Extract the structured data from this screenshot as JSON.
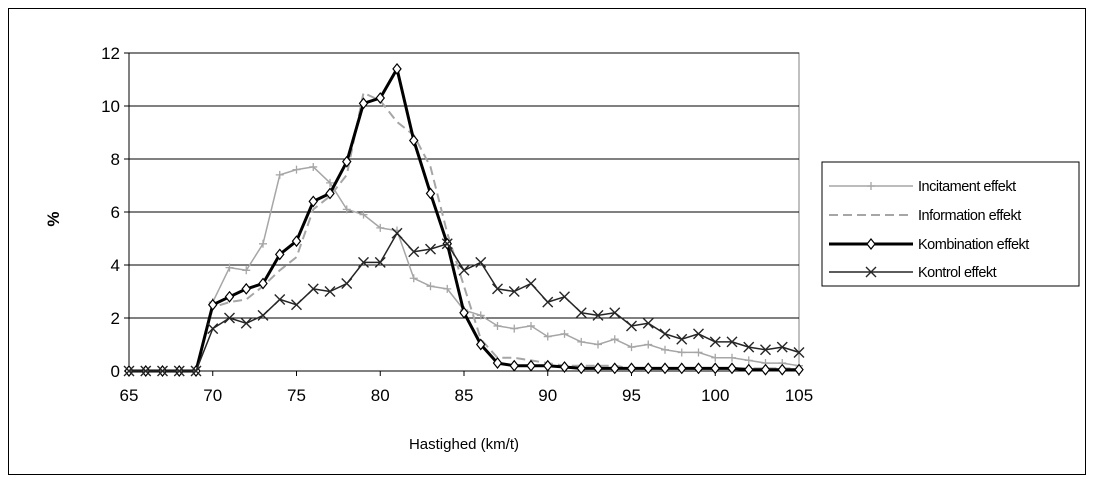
{
  "chart_data": {
    "type": "line",
    "xlabel": "Hastighed (km/t)",
    "ylabel": "%",
    "xlim": [
      65,
      105
    ],
    "ylim": [
      0,
      12
    ],
    "xticks": [
      65,
      70,
      75,
      80,
      85,
      90,
      95,
      100,
      105
    ],
    "yticks": [
      0,
      2,
      4,
      6,
      8,
      10,
      12
    ],
    "grid": "horizontal",
    "legend_position": "right",
    "x": [
      65,
      66,
      67,
      68,
      69,
      70,
      71,
      72,
      73,
      74,
      75,
      76,
      77,
      78,
      79,
      80,
      81,
      82,
      83,
      84,
      85,
      86,
      87,
      88,
      89,
      90,
      91,
      92,
      93,
      94,
      95,
      96,
      97,
      98,
      99,
      100,
      101,
      102,
      103,
      104,
      105
    ],
    "series": [
      {
        "name": "Incitament effekt",
        "color": "#a6a6a6",
        "line": "solid-thin",
        "marker": "plus",
        "values": [
          0,
          0,
          0,
          0,
          0,
          2.6,
          3.9,
          3.8,
          4.8,
          7.4,
          7.6,
          7.7,
          7.1,
          6.1,
          5.9,
          5.4,
          5.3,
          3.5,
          3.2,
          3.1,
          2.3,
          2.1,
          1.7,
          1.6,
          1.7,
          1.3,
          1.4,
          1.1,
          1.0,
          1.2,
          0.9,
          1.0,
          0.8,
          0.7,
          0.7,
          0.5,
          0.5,
          0.4,
          0.3,
          0.3,
          0.2
        ]
      },
      {
        "name": "Information effekt",
        "color": "#a6a6a6",
        "line": "dashed",
        "marker": "none",
        "values": [
          0,
          0,
          0,
          0,
          0,
          2.4,
          2.6,
          2.7,
          3.2,
          3.8,
          4.3,
          6.1,
          6.6,
          7.4,
          10.5,
          10.2,
          9.4,
          8.9,
          7.7,
          5.2,
          3.2,
          1.2,
          0.5,
          0.5,
          0.4,
          0.3,
          0.2,
          0.2,
          0.2,
          0.2,
          0.1,
          0.1,
          0.1,
          0.1,
          0.1,
          0.1,
          0.1,
          0.1,
          0.1,
          0.1,
          0.1
        ]
      },
      {
        "name": "Kombination effekt",
        "color": "#000000",
        "line": "solid-thick",
        "marker": "diamond",
        "values": [
          0,
          0,
          0,
          0,
          0,
          2.5,
          2.8,
          3.1,
          3.3,
          4.4,
          4.9,
          6.4,
          6.7,
          7.9,
          10.1,
          10.3,
          11.4,
          8.7,
          6.7,
          4.8,
          2.2,
          1.0,
          0.3,
          0.2,
          0.2,
          0.2,
          0.15,
          0.1,
          0.1,
          0.1,
          0.1,
          0.1,
          0.1,
          0.1,
          0.1,
          0.1,
          0.1,
          0.05,
          0.05,
          0.05,
          0.05
        ]
      },
      {
        "name": "Kontrol effekt",
        "color": "#262626",
        "line": "solid-thin",
        "marker": "x",
        "values": [
          0,
          0,
          0,
          0,
          0,
          1.6,
          2.0,
          1.8,
          2.1,
          2.7,
          2.5,
          3.1,
          3.0,
          3.3,
          4.1,
          4.1,
          5.2,
          4.5,
          4.6,
          4.8,
          3.8,
          4.1,
          3.1,
          3.0,
          3.3,
          2.6,
          2.8,
          2.2,
          2.1,
          2.2,
          1.7,
          1.8,
          1.4,
          1.2,
          1.4,
          1.1,
          1.1,
          0.9,
          0.8,
          0.9,
          0.7
        ]
      }
    ]
  }
}
